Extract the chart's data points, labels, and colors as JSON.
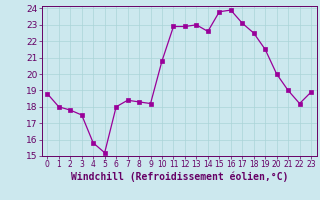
{
  "x": [
    0,
    1,
    2,
    3,
    4,
    5,
    6,
    7,
    8,
    9,
    10,
    11,
    12,
    13,
    14,
    15,
    16,
    17,
    18,
    19,
    20,
    21,
    22,
    23
  ],
  "y": [
    18.8,
    18.0,
    17.8,
    17.5,
    15.8,
    15.2,
    18.0,
    18.4,
    18.3,
    18.2,
    20.8,
    22.9,
    22.9,
    23.0,
    22.6,
    23.8,
    23.9,
    23.1,
    22.5,
    21.5,
    20.0,
    19.0,
    18.2,
    18.9
  ],
  "line_color": "#990099",
  "marker_color": "#990099",
  "bg_color": "#cce8ee",
  "grid_color": "#aad4d8",
  "xlabel": "Windchill (Refroidissement éolien,°C)",
  "ylim": [
    15,
    24
  ],
  "xlim_min": -0.5,
  "xlim_max": 23.5,
  "yticks": [
    15,
    16,
    17,
    18,
    19,
    20,
    21,
    22,
    23,
    24
  ],
  "xticks": [
    0,
    1,
    2,
    3,
    4,
    5,
    6,
    7,
    8,
    9,
    10,
    11,
    12,
    13,
    14,
    15,
    16,
    17,
    18,
    19,
    20,
    21,
    22,
    23
  ],
  "xlabel_fontsize": 7,
  "ytick_fontsize": 6.5,
  "xtick_fontsize": 5.5,
  "label_color": "#660066",
  "axis_color": "#660066",
  "tick_color": "#660066"
}
